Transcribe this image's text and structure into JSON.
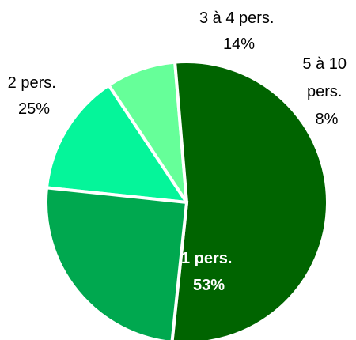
{
  "chart_data": {
    "type": "pie",
    "slices": [
      {
        "label": "1 pers.",
        "value": 53,
        "value_text": "53%",
        "color": "#006400"
      },
      {
        "label": "2 pers.",
        "value": 25,
        "value_text": "25%",
        "color": "#00A84F"
      },
      {
        "label": "3 à 4 pers.",
        "value": 14,
        "value_text": "14%",
        "color": "#05F59A"
      },
      {
        "label": "5 à 10 pers.",
        "value_lines": [
          "5 à 10",
          "pers."
        ],
        "value": 8,
        "value_text": "8%",
        "color": "#66FF99"
      }
    ],
    "legend": "none"
  }
}
